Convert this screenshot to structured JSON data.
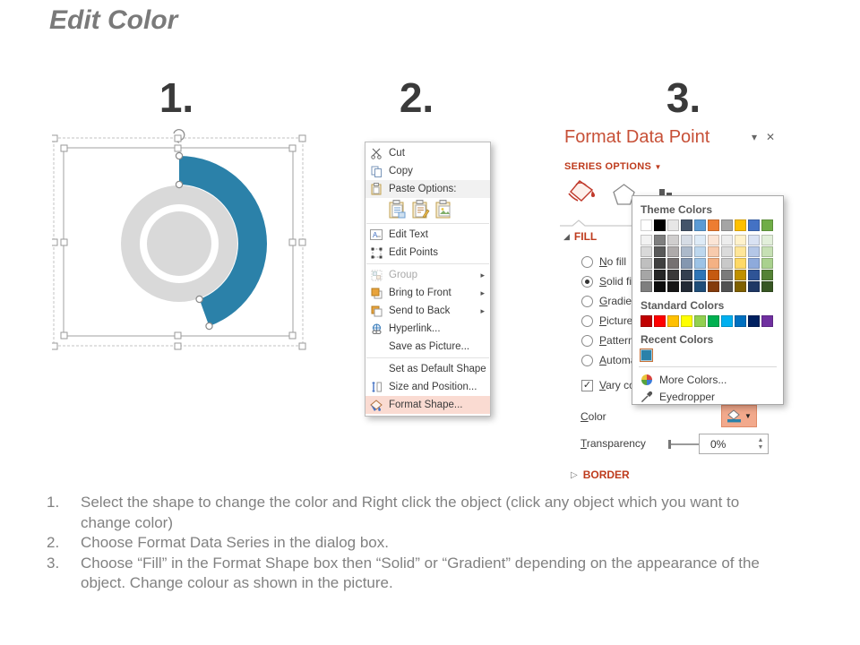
{
  "slide": {
    "title": "Edit Color",
    "step_numbers": [
      "1.",
      "2.",
      "3."
    ],
    "instructions": [
      {
        "num": "1.",
        "text": "Select the shape to change the color and Right click the object (click any object which you want to change color)"
      },
      {
        "num": "2.",
        "text": "Choose Format Data Series in the dialog box."
      },
      {
        "num": "3.",
        "text": "Choose “Fill” in the Format Shape box then “Solid” or “Gradient” depending on the appearance of the object. Change colour as shown in the picture."
      }
    ]
  },
  "chart_shape": {
    "type": "donut",
    "ring_color": "#d9d9d9",
    "selected_segment_color": "#2b81a9",
    "selected_segment_sweep_deg": 160
  },
  "context_menu": {
    "items": [
      "Cut",
      "Copy",
      "Paste Options:",
      "Edit Text",
      "Edit Points",
      "Group",
      "Bring to Front",
      "Send to Back",
      "Hyperlink...",
      "Save as Picture...",
      "Set as Default Shape",
      "Size and Position...",
      "Format Shape..."
    ],
    "highlight_color": "#fadbd2"
  },
  "format_panel": {
    "title": "Format Data Point",
    "section_header": "SERIES OPTIONS",
    "fill_header": "FILL",
    "border_header": "BORDER",
    "fill_options": [
      "No fill",
      "Solid fill",
      "Gradient fill",
      "Picture or texture fill",
      "Pattern fill",
      "Automatic"
    ],
    "selected_fill_option": "Solid fill",
    "vary_checkbox_label": "Vary colors by slice",
    "vary_checked": true,
    "color_label": "Color",
    "transparency_label": "Transparency",
    "transparency_value": "0%",
    "title_color": "#c75037",
    "accent_color": "#be3b1d"
  },
  "color_picker": {
    "theme_label": "Theme Colors",
    "standard_label": "Standard Colors",
    "recent_label": "Recent Colors",
    "more_colors_label": "More Colors...",
    "eyedropper_label": "Eyedropper",
    "theme_colors": [
      "#FFFFFF",
      "#000000",
      "#E7E6E6",
      "#44546A",
      "#5B9BD5",
      "#ED7D31",
      "#A5A5A5",
      "#FFC000",
      "#4472C4",
      "#70AD47"
    ],
    "theme_variants": [
      [
        "#F2F2F2",
        "#7F7F7F",
        "#D0CECE",
        "#D6DCE5",
        "#DEEBF7",
        "#FBE5D6",
        "#EDEDED",
        "#FFF2CC",
        "#D9E2F3",
        "#E2EFDA"
      ],
      [
        "#D9D9D9",
        "#595959",
        "#AEAAAA",
        "#ACB9CA",
        "#BDD7EE",
        "#F8CBAD",
        "#DBDBDB",
        "#FFE699",
        "#B4C7E7",
        "#C6E0B4"
      ],
      [
        "#BFBFBF",
        "#404040",
        "#767171",
        "#8497B0",
        "#9DC3E6",
        "#F4B183",
        "#C9C9C9",
        "#FFD966",
        "#8EAADB",
        "#A9D18E"
      ],
      [
        "#A6A6A6",
        "#262626",
        "#3A3838",
        "#333F50",
        "#2E75B6",
        "#C55A11",
        "#7B7B7B",
        "#BF9000",
        "#2F5496",
        "#548235"
      ],
      [
        "#7F7F7F",
        "#0D0D0D",
        "#171616",
        "#222A35",
        "#1F4E79",
        "#843C0C",
        "#525252",
        "#7F6000",
        "#1F3864",
        "#375623"
      ]
    ],
    "standard_colors": [
      "#C00000",
      "#FF0000",
      "#FFC000",
      "#FFFF00",
      "#92D050",
      "#00B050",
      "#00B0F0",
      "#0070C0",
      "#002060",
      "#7030A0"
    ],
    "recent_colors": [
      "#2B81A9"
    ]
  }
}
